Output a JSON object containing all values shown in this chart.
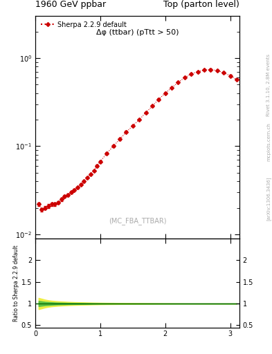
{
  "title_left": "1960 GeV ppbar",
  "title_right": "Top (parton level)",
  "plot_title": "Δφ (ttbar) (pTtt > 50)",
  "legend_label": "Sherpa 2.2.9 default",
  "watermark": "(MC_FBA_TTBAR)",
  "right_label_top": "Rivet 3.1.10, 2.8M events",
  "right_label_bot": "[arXiv:1306.3436]",
  "right_label_url": "mcplots.cern.ch",
  "right_label_combined": "mcplots.cern.ch [arXiv:1306.3436]",
  "ylabel_ratio": "Ratio to Sherpa 2.2.9 default",
  "line_color": "#cc0000",
  "marker": "D",
  "marker_size": 3.0,
  "xlim": [
    0,
    3.14159
  ],
  "ylim_main": [
    0.009,
    3.0
  ],
  "ylim_ratio": [
    0.45,
    2.5
  ],
  "ratio_yticks": [
    0.5,
    1.0,
    1.5,
    2.0
  ],
  "x_data": [
    0.05,
    0.1,
    0.15,
    0.2,
    0.25,
    0.3,
    0.35,
    0.4,
    0.45,
    0.5,
    0.55,
    0.6,
    0.65,
    0.7,
    0.75,
    0.8,
    0.85,
    0.9,
    0.95,
    1.0,
    1.1,
    1.2,
    1.3,
    1.4,
    1.5,
    1.6,
    1.7,
    1.8,
    1.9,
    2.0,
    2.1,
    2.2,
    2.3,
    2.4,
    2.5,
    2.6,
    2.7,
    2.8,
    2.9,
    3.0,
    3.1
  ],
  "y_data": [
    0.022,
    0.019,
    0.02,
    0.021,
    0.022,
    0.022,
    0.023,
    0.025,
    0.027,
    0.028,
    0.03,
    0.032,
    0.034,
    0.037,
    0.04,
    0.044,
    0.048,
    0.053,
    0.06,
    0.067,
    0.083,
    0.1,
    0.12,
    0.145,
    0.17,
    0.2,
    0.24,
    0.285,
    0.34,
    0.4,
    0.46,
    0.53,
    0.6,
    0.66,
    0.7,
    0.73,
    0.74,
    0.72,
    0.68,
    0.63,
    0.57
  ],
  "y_err": [
    0.001,
    0.001,
    0.001,
    0.001,
    0.001,
    0.001,
    0.001,
    0.001,
    0.001,
    0.001,
    0.001,
    0.001,
    0.001,
    0.001,
    0.001,
    0.001,
    0.001,
    0.001,
    0.002,
    0.002,
    0.002,
    0.003,
    0.003,
    0.004,
    0.004,
    0.005,
    0.006,
    0.007,
    0.008,
    0.009,
    0.01,
    0.011,
    0.012,
    0.013,
    0.014,
    0.015,
    0.015,
    0.014,
    0.013,
    0.012,
    0.011
  ],
  "green_band_lower": [
    0.94,
    0.95,
    0.96,
    0.965,
    0.97,
    0.975,
    0.978,
    0.98,
    0.982,
    0.984,
    0.985,
    0.986,
    0.987,
    0.988,
    0.989,
    0.99,
    0.991,
    0.992,
    0.993,
    0.994,
    0.995,
    0.996,
    0.997,
    0.998,
    0.999,
    0.999,
    1.0,
    1.0,
    1.0,
    1.0,
    1.0,
    1.0,
    1.0,
    1.0,
    1.0,
    1.0,
    1.0,
    1.0,
    1.0,
    1.0,
    1.0
  ],
  "green_band_upper": [
    1.06,
    1.05,
    1.04,
    1.035,
    1.03,
    1.025,
    1.022,
    1.02,
    1.018,
    1.016,
    1.015,
    1.014,
    1.013,
    1.012,
    1.011,
    1.01,
    1.009,
    1.008,
    1.007,
    1.006,
    1.005,
    1.004,
    1.003,
    1.002,
    1.001,
    1.001,
    1.0,
    1.0,
    1.0,
    1.0,
    1.0,
    1.0,
    1.0,
    1.0,
    1.0,
    1.0,
    1.0,
    1.0,
    1.0,
    1.0,
    1.0
  ],
  "yellow_band_lower": [
    0.87,
    0.89,
    0.91,
    0.925,
    0.935,
    0.942,
    0.948,
    0.953,
    0.957,
    0.961,
    0.964,
    0.967,
    0.969,
    0.971,
    0.973,
    0.975,
    0.977,
    0.979,
    0.98,
    0.982,
    0.984,
    0.985,
    0.987,
    0.988,
    0.989,
    0.99,
    0.991,
    0.992,
    0.993,
    0.994,
    0.995,
    0.996,
    0.997,
    0.998,
    0.999,
    0.999,
    1.0,
    1.0,
    1.0,
    1.0,
    1.0
  ],
  "yellow_band_upper": [
    1.13,
    1.11,
    1.09,
    1.075,
    1.065,
    1.058,
    1.052,
    1.047,
    1.043,
    1.039,
    1.036,
    1.033,
    1.031,
    1.029,
    1.027,
    1.025,
    1.023,
    1.021,
    1.02,
    1.018,
    1.016,
    1.015,
    1.013,
    1.012,
    1.011,
    1.01,
    1.009,
    1.008,
    1.007,
    1.006,
    1.005,
    1.004,
    1.003,
    1.002,
    1.001,
    1.001,
    1.0,
    1.0,
    1.0,
    1.0,
    1.0
  ],
  "green_color": "#44bb44",
  "yellow_color": "#eeee44",
  "ratio_line_color": "#006600",
  "label_color": "#aaaaaa"
}
